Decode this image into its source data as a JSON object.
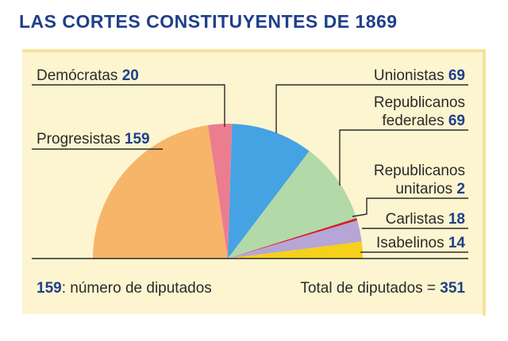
{
  "title": "LAS CORTES CONSTITUYENTES DE 1869",
  "chart_data": {
    "type": "pie",
    "subtype": "semicircle",
    "title": "LAS CORTES CONSTITUYENTES DE 1869",
    "slices": [
      {
        "label": "Progresistas",
        "value": 159,
        "color": "#f7b56a"
      },
      {
        "label": "Demócratas",
        "value": 20,
        "color": "#ec7d8e"
      },
      {
        "label": "Unionistas",
        "value": 69,
        "color": "#45a3e3"
      },
      {
        "label": "Republicanos federales",
        "value": 69,
        "color": "#b3d9a8"
      },
      {
        "label": "Republicanos unitarios",
        "value": 2,
        "color": "#d0202a"
      },
      {
        "label": "Carlistas",
        "value": 18,
        "color": "#b7a5d6"
      },
      {
        "label": "Isabelinos",
        "value": 14,
        "color": "#f5d11a"
      }
    ],
    "total": 351
  },
  "labels": {
    "democratas": {
      "name": "Demócratas",
      "value": "20"
    },
    "progresistas": {
      "name": "Progresistas",
      "value": "159"
    },
    "unionistas": {
      "name": "Unionistas",
      "value": "69"
    },
    "rep_federales": {
      "line1": "Republicanos",
      "line2": "federales",
      "value": "69"
    },
    "rep_unitarios": {
      "line1": "Republicanos",
      "line2": "unitarios",
      "value": "2"
    },
    "carlistas": {
      "name": "Carlistas",
      "value": "18"
    },
    "isabelinos": {
      "name": "Isabelinos",
      "value": "14"
    }
  },
  "legend": {
    "value": "159",
    "text": ": número de diputados"
  },
  "total": {
    "text": "Total de diputados =",
    "value": "351"
  }
}
